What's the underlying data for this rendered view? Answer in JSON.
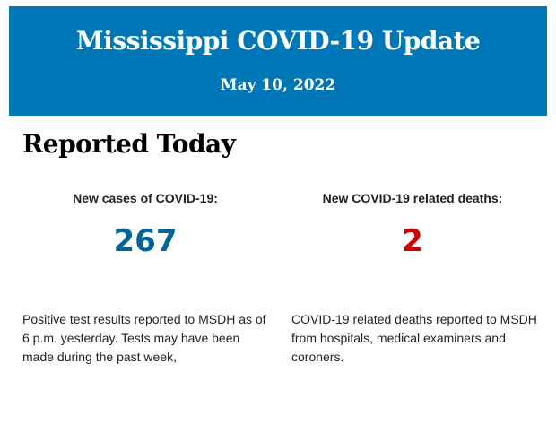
{
  "header": {
    "title": "Mississippi COVID-19 Update",
    "date": "May 10, 2022"
  },
  "section_title": "Reported Today",
  "colors": {
    "banner": "#0077b6",
    "cases": "#006699",
    "deaths": "#cc0000"
  },
  "cases": {
    "label": "New cases of COVID-19:",
    "value": "267",
    "description": "Positive test results reported to MSDH as of 6 p.m. yesterday. Tests may have been made during the past week,"
  },
  "deaths": {
    "label": "New COVID-19 related deaths:",
    "value": "2",
    "description": "COVID-19 related deaths reported to MSDH from hospitals, medical examiners and coroners."
  }
}
